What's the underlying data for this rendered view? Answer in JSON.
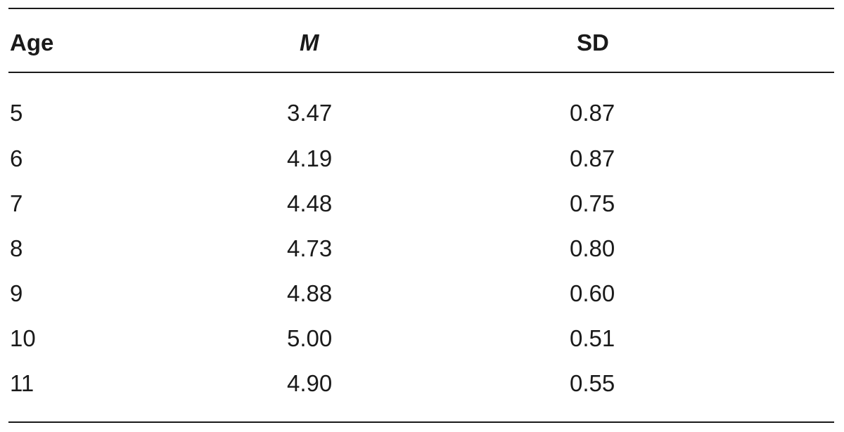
{
  "table": {
    "headers": {
      "age": "Age",
      "m": "M",
      "sd": "SD"
    },
    "rows": [
      {
        "age": "5",
        "m": "3.47",
        "sd": "0.87"
      },
      {
        "age": "6",
        "m": "4.19",
        "sd": "0.87"
      },
      {
        "age": "7",
        "m": "4.48",
        "sd": "0.75"
      },
      {
        "age": "8",
        "m": "4.73",
        "sd": "0.80"
      },
      {
        "age": "9",
        "m": "4.88",
        "sd": "0.60"
      },
      {
        "age": "10",
        "m": "5.00",
        "sd": "0.51"
      },
      {
        "age": "11",
        "m": "4.90",
        "sd": "0.55"
      }
    ]
  }
}
